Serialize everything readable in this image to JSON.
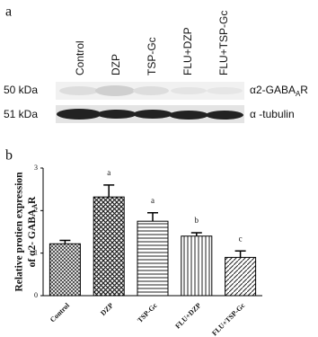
{
  "blot": {
    "panel": "a",
    "lanes": [
      "Control",
      "DZP",
      "TSP-Gc",
      "FLU+DZP",
      "FLU+TSP-Gc"
    ],
    "rows": [
      {
        "size": "50 kDa",
        "label": [
          "α2-GABA",
          "A",
          "R"
        ]
      },
      {
        "size": "51 kDa",
        "label": [
          "α -tubulin"
        ]
      }
    ]
  },
  "chart_data": {
    "type": "bar",
    "panel": "b",
    "y_label": [
      "Relative protien expression",
      "of α2- GABA",
      "A",
      "R"
    ],
    "categories": [
      "Control",
      "DZP",
      "TSP-Gc",
      "FLU+DZP",
      "FLU+TSP-Gc"
    ],
    "values": [
      1.22,
      2.32,
      1.75,
      1.4,
      0.9
    ],
    "errors": [
      0.08,
      0.28,
      0.2,
      0.08,
      0.15
    ],
    "annotations": [
      null,
      "a",
      "a",
      "b",
      "c"
    ],
    "ylim": [
      0,
      3
    ],
    "yticks": [
      0,
      1,
      2,
      3
    ]
  }
}
